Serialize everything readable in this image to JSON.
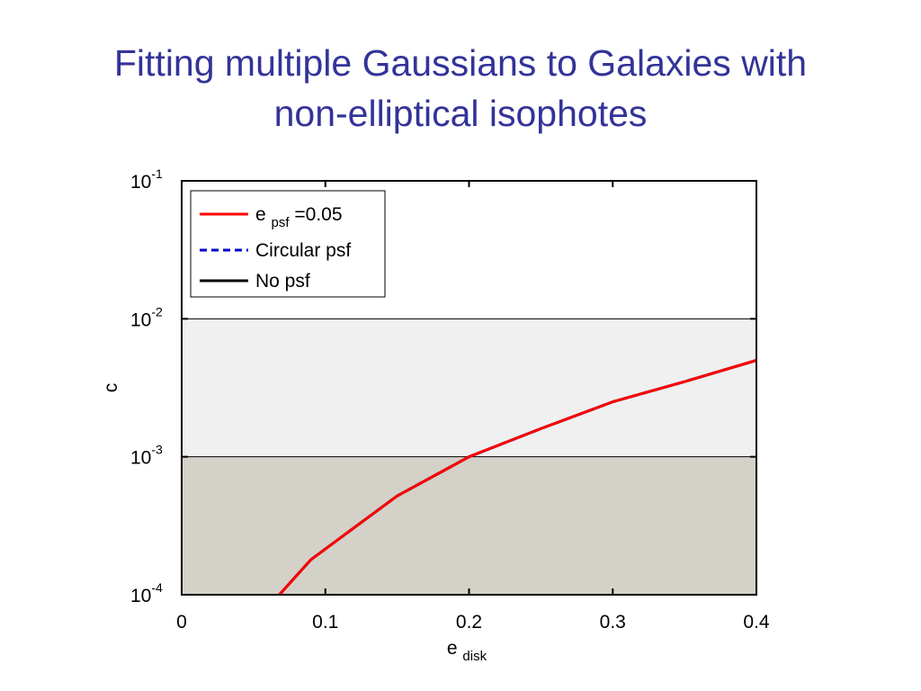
{
  "slide": {
    "title_line1": "Fitting multiple Gaussians to Galaxies with",
    "title_line2": "non-elliptical isophotes"
  },
  "colors": {
    "title": "#333399",
    "band_light": "#f0f0f0",
    "band_dark": "#d4d1c8",
    "epsf_series": "#ff0000",
    "circular_series": "#0000cc",
    "nopsf_series": "#000000"
  },
  "chart_data": {
    "type": "line",
    "xlabel": {
      "main": "e",
      "sub": "disk"
    },
    "ylabel": "c",
    "xlim": [
      0,
      0.4
    ],
    "ylim": [
      0.0001,
      0.1
    ],
    "yscale": "log",
    "grid": false,
    "x_ticks": [
      {
        "value": 0,
        "label": "0"
      },
      {
        "value": 0.1,
        "label": "0.1"
      },
      {
        "value": 0.2,
        "label": "0.2"
      },
      {
        "value": 0.3,
        "label": "0.3"
      },
      {
        "value": 0.4,
        "label": "0.4"
      }
    ],
    "y_ticks": [
      {
        "value": 0.1,
        "base": "10",
        "exp": "-1"
      },
      {
        "value": 0.01,
        "base": "10",
        "exp": "-2"
      },
      {
        "value": 0.001,
        "base": "10",
        "exp": "-3"
      },
      {
        "value": 0.0001,
        "base": "10",
        "exp": "-4"
      }
    ],
    "bands": [
      {
        "y_from": 0.001,
        "y_to": 0.01,
        "color": "#f0f0f0"
      },
      {
        "y_from": 0.0001,
        "y_to": 0.001,
        "color": "#d4d1c8"
      }
    ],
    "legend_position": "top-left",
    "series": [
      {
        "name_main": "e",
        "name_sub": "psf",
        "name_suffix": "=0.05",
        "color": "#ff0000",
        "dash": "solid",
        "x": [
          0.068,
          0.09,
          0.15,
          0.2,
          0.25,
          0.3,
          0.35,
          0.4
        ],
        "y": [
          0.0001,
          0.00018,
          0.00052,
          0.001,
          0.0016,
          0.0025,
          0.0035,
          0.005
        ]
      },
      {
        "name": "Circular psf",
        "color": "#0000cc",
        "dash": "dashed",
        "x": [
          0.068,
          0.09,
          0.15,
          0.2,
          0.25,
          0.3,
          0.35,
          0.4
        ],
        "y": [
          0.0001,
          0.00018,
          0.00052,
          0.001,
          0.0016,
          0.0025,
          0.0035,
          0.005
        ]
      },
      {
        "name": "No psf",
        "color": "#000000",
        "dash": "solid",
        "x": [
          0.068,
          0.09,
          0.15,
          0.2,
          0.25,
          0.3,
          0.35,
          0.4
        ],
        "y": [
          0.0001,
          0.00018,
          0.00052,
          0.001,
          0.0016,
          0.0025,
          0.0035,
          0.005
        ]
      }
    ]
  }
}
